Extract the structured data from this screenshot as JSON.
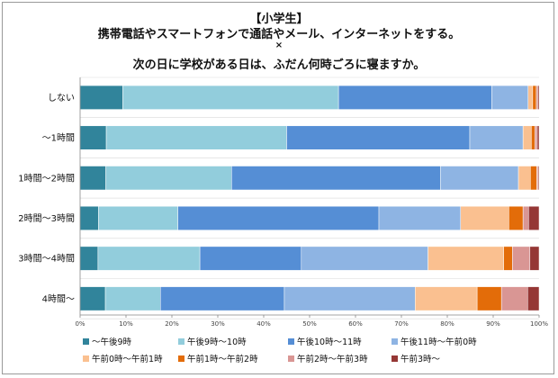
{
  "chart_data": {
    "type": "bar",
    "orientation": "horizontal",
    "stacked": "percent",
    "title_lines": [
      "【小学生】",
      "携帯電話やスマートフォンで通話やメール、インターネットをする。",
      "×",
      "次の日に学校がある日は、ふだん何時ごろに寝ますか。"
    ],
    "categories": [
      "しない",
      "～1時間",
      "1時間～2時間",
      "2時間～3時間",
      "3時間～4時間",
      "4時間～"
    ],
    "xlim": [
      0,
      100
    ],
    "xticks": [
      "0%",
      "10%",
      "20%",
      "30%",
      "40%",
      "50%",
      "60%",
      "70%",
      "80%",
      "90%",
      "100%"
    ],
    "grid": false,
    "legend_position": "bottom",
    "series": [
      {
        "name": "～午後9時",
        "color": "#31849b",
        "values": [
          9.3,
          5.7,
          5.6,
          4.0,
          3.9,
          5.5
        ]
      },
      {
        "name": "午後9時～10時",
        "color": "#92cddc",
        "values": [
          47.0,
          39.3,
          27.4,
          17.3,
          22.2,
          12.0
        ]
      },
      {
        "name": "午後10時～11時",
        "color": "#558ed5",
        "values": [
          33.4,
          39.9,
          45.5,
          43.8,
          22.1,
          27.0
        ]
      },
      {
        "name": "午後11時～午前0時",
        "color": "#8eb4e3",
        "values": [
          7.9,
          11.6,
          17.0,
          17.8,
          27.6,
          28.5
        ]
      },
      {
        "name": "午前0時～午前1時",
        "color": "#fac090",
        "values": [
          1.0,
          1.8,
          2.6,
          10.5,
          16.5,
          13.5
        ]
      },
      {
        "name": "午前1時～午前2時",
        "color": "#e36c09",
        "values": [
          0.8,
          0.8,
          1.4,
          3.1,
          1.9,
          5.3
        ]
      },
      {
        "name": "午前2時～午前3時",
        "color": "#d99694",
        "values": [
          0.3,
          0.5,
          0.3,
          1.2,
          3.8,
          5.7
        ]
      },
      {
        "name": "午前3時～",
        "color": "#953735",
        "values": [
          0.3,
          0.4,
          0.2,
          2.3,
          2.0,
          2.5
        ]
      }
    ]
  }
}
